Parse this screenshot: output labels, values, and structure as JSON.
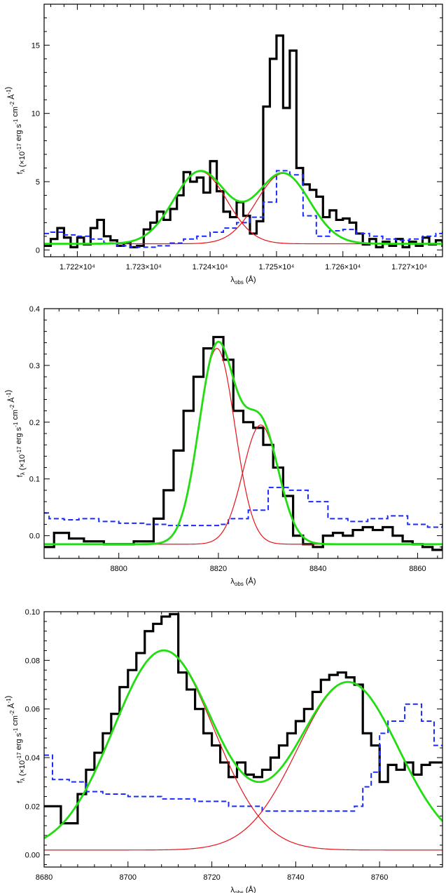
{
  "chart_data": [
    {
      "type": "line",
      "xlabel": "λ_obs (Å)",
      "ylabel": "f_λ (×10^-17 erg s^-1 cm^-2 Å^-1)",
      "xlim": [
        17215,
        17275
      ],
      "ylim": [
        -0.5,
        18
      ],
      "x_tick_values": [
        17220,
        17230,
        17240,
        17250,
        17260,
        17270
      ],
      "x_tick_labels": [
        "1.722×10⁴",
        "1.723×10⁴",
        "1.724×10⁴",
        "1.725×10⁴",
        "1.726×10⁴",
        "1.727×10⁴"
      ],
      "y_tick_values": [
        0,
        5,
        10,
        15
      ],
      "y_tick_labels": [
        "0",
        "5",
        "10",
        "15"
      ],
      "colors": {
        "spectrum": "#000000",
        "noise": "#1a2bff",
        "components": "#e8121a",
        "total_fit": "#22dd11"
      },
      "series": [
        {
          "style": "steps-black",
          "x": [
            17215,
            17216,
            17217,
            17218,
            17219,
            17220,
            17221,
            17222,
            17223,
            17224,
            17225,
            17226,
            17227,
            17228,
            17229,
            17230,
            17231,
            17232,
            17233,
            17234,
            17235,
            17236,
            17237,
            17238,
            17239,
            17240,
            17241,
            17242,
            17243,
            17244,
            17245,
            17246,
            17247,
            17248,
            17249,
            17250,
            17251,
            17252,
            17253,
            17254,
            17255,
            17256,
            17257,
            17258,
            17259,
            17260,
            17261,
            17262,
            17263,
            17264,
            17265,
            17266,
            17267,
            17268,
            17269,
            17270,
            17271,
            17272,
            17273,
            17274,
            17275
          ],
          "y": [
            0.3,
            0.8,
            1.6,
            0.9,
            0.2,
            0.9,
            0.4,
            1.6,
            2.2,
            1.0,
            0.7,
            0.3,
            0.5,
            0.2,
            0.3,
            1.5,
            2.0,
            2.8,
            2.2,
            3.0,
            4.0,
            5.7,
            5.0,
            5.3,
            4.2,
            6.5,
            4.3,
            2.8,
            2.4,
            3.5,
            2.5,
            1.2,
            2.1,
            10.5,
            14.0,
            15.7,
            10.4,
            14.6,
            6.0,
            4.8,
            4.4,
            3.9,
            2.4,
            2.9,
            2.2,
            2.3,
            2.0,
            1.2,
            0.4,
            0.8,
            0.2,
            0.6,
            0.3,
            0.8,
            0.2,
            0.6,
            0.3,
            0.9,
            0.4,
            0.7,
            0.3
          ]
        },
        {
          "style": "steps-dashed-blue",
          "x": [
            17215,
            17216,
            17218,
            17220,
            17222,
            17224,
            17226,
            17228,
            17230,
            17232,
            17234,
            17236,
            17238,
            17240,
            17242,
            17244,
            17246,
            17248,
            17250,
            17252,
            17254,
            17256,
            17258,
            17260,
            17262,
            17264,
            17266,
            17268,
            17270,
            17272,
            17274,
            17275
          ],
          "y": [
            1.2,
            1.3,
            1.1,
            1.0,
            0.8,
            0.5,
            0.3,
            0.2,
            0.2,
            0.3,
            0.5,
            0.8,
            1.0,
            1.3,
            1.6,
            2.0,
            2.4,
            3.5,
            5.8,
            5.5,
            2.5,
            1.0,
            1.4,
            1.5,
            1.2,
            1.0,
            0.8,
            0.7,
            0.8,
            1.0,
            1.2,
            1.3
          ]
        },
        {
          "style": "gaussian-red",
          "baseline": 0.45,
          "amplitude": 5.3,
          "center": 17238.5,
          "sigma": 4.0
        },
        {
          "style": "gaussian-red",
          "baseline": 0.45,
          "amplitude": 5.15,
          "center": 17251,
          "sigma": 4.0
        },
        {
          "style": "total-green",
          "baseline": 0.45,
          "components": [
            [
              5.3,
              17238.5,
              4.0
            ],
            [
              5.15,
              17251,
              4.0
            ]
          ]
        }
      ]
    },
    {
      "type": "line",
      "xlabel": "λ_obs (Å)",
      "ylabel": "f_λ (×10^-17 erg s^-1 cm^-2 Å^-1)",
      "xlim": [
        8785,
        8865
      ],
      "ylim": [
        -0.04,
        0.4
      ],
      "x_tick_values": [
        8800,
        8820,
        8840,
        8860
      ],
      "x_tick_labels": [
        "8800",
        "8820",
        "8840",
        "8860"
      ],
      "y_tick_values": [
        0.0,
        0.1,
        0.2,
        0.3,
        0.4
      ],
      "y_tick_labels": [
        "0.0",
        "0.1",
        "0.2",
        "0.3",
        "0.4"
      ],
      "colors": {
        "spectrum": "#000000",
        "noise": "#1a2bff",
        "components": "#e8121a",
        "total_fit": "#22dd11"
      },
      "series": [
        {
          "style": "steps-black",
          "x": [
            8785,
            8787,
            8790,
            8793,
            8797,
            8800,
            8803,
            8805,
            8807,
            8809,
            8811,
            8813,
            8815,
            8817,
            8819,
            8821,
            8823,
            8825,
            8827,
            8829,
            8831,
            8833,
            8835,
            8837,
            8839,
            8841,
            8843,
            8845,
            8847,
            8849,
            8851,
            8853,
            8855,
            8857,
            8859,
            8861,
            8863,
            8865
          ],
          "y": [
            -0.02,
            0.005,
            -0.005,
            -0.01,
            -0.015,
            -0.015,
            -0.01,
            -0.01,
            0.03,
            0.08,
            0.15,
            0.22,
            0.28,
            0.33,
            0.35,
            0.31,
            0.22,
            0.2,
            0.19,
            0.16,
            0.12,
            0.07,
            0.0,
            -0.015,
            -0.02,
            0.0,
            0.005,
            0.0,
            0.01,
            0.015,
            0.01,
            0.015,
            0.0,
            -0.01,
            -0.015,
            -0.02,
            -0.025,
            -0.02
          ]
        },
        {
          "style": "steps-dashed-blue",
          "x": [
            8785,
            8786,
            8789,
            8792,
            8796,
            8800,
            8805,
            8810,
            8815,
            8820,
            8822,
            8826,
            8830,
            8834,
            8838,
            8842,
            8846,
            8850,
            8854,
            8858,
            8862,
            8865
          ],
          "y": [
            0.04,
            0.03,
            0.028,
            0.03,
            0.025,
            0.022,
            0.02,
            0.018,
            0.018,
            0.02,
            0.03,
            0.045,
            0.085,
            0.08,
            0.06,
            0.03,
            0.025,
            0.03,
            0.035,
            0.02,
            0.015,
            0.02
          ],
          "stop": 8865
        },
        {
          "style": "gaussian-red",
          "baseline": -0.015,
          "amplitude": 0.345,
          "center": 8819.7,
          "sigma": 3.6
        },
        {
          "style": "gaussian-red",
          "baseline": -0.015,
          "amplitude": 0.21,
          "center": 8828.5,
          "sigma": 3.6
        },
        {
          "style": "total-green",
          "baseline": -0.015,
          "components": [
            [
              0.345,
              8819.7,
              3.6
            ],
            [
              0.21,
              8828.5,
              3.6
            ]
          ]
        }
      ]
    },
    {
      "type": "line",
      "xlabel": "λ_obs (Å)",
      "ylabel": "f_λ (×10^-17 erg s^-1 cm^-2 Å^-1)",
      "xlim": [
        8680,
        8775
      ],
      "ylim": [
        -0.005,
        0.1
      ],
      "x_tick_values": [
        8680,
        8700,
        8720,
        8740,
        8760
      ],
      "x_tick_labels": [
        "8680",
        "8700",
        "8720",
        "8740",
        "8760"
      ],
      "y_tick_values": [
        0.0,
        0.02,
        0.04,
        0.06,
        0.08,
        0.1
      ],
      "y_tick_labels": [
        "0.00",
        "0.02",
        "0.04",
        "0.06",
        "0.08",
        "0.10"
      ],
      "colors": {
        "spectrum": "#000000",
        "noise": "#1a2bff",
        "components": "#e8121a",
        "total_fit": "#22dd11"
      },
      "series": [
        {
          "style": "steps-black",
          "x": [
            8680,
            8684,
            8688,
            8690,
            8692,
            8694,
            8696,
            8698,
            8700,
            8702,
            8704,
            8706,
            8708,
            8710,
            8712,
            8714,
            8716,
            8718,
            8720,
            8722,
            8724,
            8726,
            8728,
            8730,
            8732,
            8734,
            8736,
            8738,
            8740,
            8742,
            8744,
            8746,
            8748,
            8750,
            8752,
            8754,
            8756,
            8758,
            8760,
            8762,
            8764,
            8766,
            8768,
            8770,
            8772,
            8775
          ],
          "y": [
            0.02,
            0.013,
            0.025,
            0.035,
            0.042,
            0.05,
            0.058,
            0.069,
            0.076,
            0.083,
            0.092,
            0.095,
            0.098,
            0.099,
            0.075,
            0.068,
            0.06,
            0.05,
            0.045,
            0.038,
            0.032,
            0.038,
            0.033,
            0.032,
            0.035,
            0.04,
            0.045,
            0.05,
            0.055,
            0.06,
            0.067,
            0.072,
            0.074,
            0.075,
            0.073,
            0.07,
            0.05,
            0.045,
            0.03,
            0.037,
            0.035,
            0.038,
            0.033,
            0.037,
            0.038,
            0.038
          ]
        },
        {
          "style": "steps-dashed-blue",
          "x": [
            8680,
            8682,
            8686,
            8690,
            8694,
            8700,
            8708,
            8716,
            8724,
            8732,
            8740,
            8748,
            8754,
            8756,
            8758,
            8760,
            8762,
            8766,
            8770,
            8773,
            8775
          ],
          "y": [
            0.041,
            0.031,
            0.03,
            0.026,
            0.025,
            0.024,
            0.023,
            0.022,
            0.02,
            0.018,
            0.018,
            0.018,
            0.02,
            0.028,
            0.034,
            0.05,
            0.055,
            0.062,
            0.055,
            0.045,
            0.045
          ]
        },
        {
          "style": "gaussian-red",
          "baseline": 0.002,
          "amplitude": 0.082,
          "center": 8708.5,
          "sigma": 12.0
        },
        {
          "style": "gaussian-red",
          "baseline": 0.002,
          "amplitude": 0.069,
          "center": 8752.5,
          "sigma": 12.0
        },
        {
          "style": "total-green",
          "baseline": 0.002,
          "components": [
            [
              0.082,
              8708.5,
              12.0
            ],
            [
              0.069,
              8752.5,
              12.0
            ]
          ]
        }
      ]
    }
  ]
}
